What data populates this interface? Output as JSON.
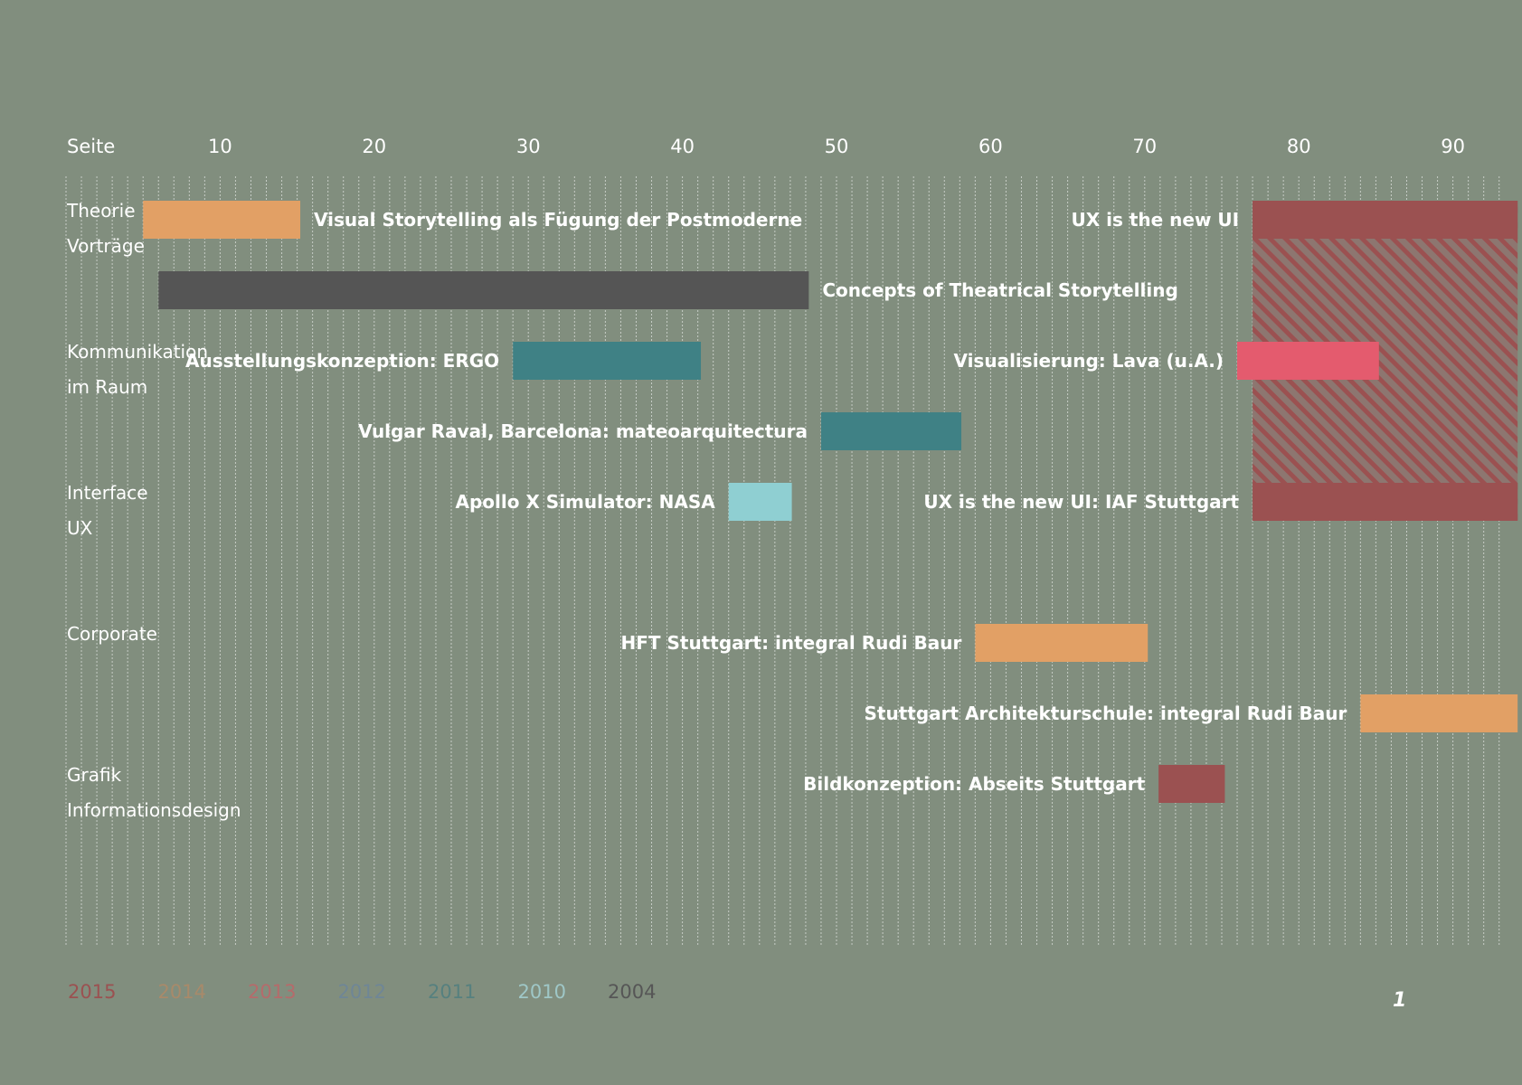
{
  "page_number": "1",
  "chart_data": {
    "type": "timeline",
    "axis_label": "Seite",
    "xlim": [
      0,
      93
    ],
    "ticks": [
      10,
      20,
      30,
      40,
      50,
      60,
      70,
      80,
      90
    ],
    "tick_labels": [
      "10",
      "20",
      "30",
      "40",
      "50",
      "60",
      "70",
      "80",
      "90"
    ],
    "gridlines": true,
    "colors": {
      "2015": "#9b5151",
      "2014": "#e2a065",
      "2013": "#e45b6e",
      "2012": "#5c7c93",
      "2011": "#3f8185",
      "2010": "#8fcfd2",
      "2004": "#555555"
    },
    "legend": [
      {
        "year": "2015",
        "color": "#9b5151"
      },
      {
        "year": "2014",
        "color": "#a88a6a"
      },
      {
        "year": "2013",
        "color": "#b56b6b"
      },
      {
        "year": "2012",
        "color": "#6f8696"
      },
      {
        "year": "2011",
        "color": "#56807f"
      },
      {
        "year": "2010",
        "color": "#9fc7c7"
      },
      {
        "year": "2004",
        "color": "#565656"
      }
    ],
    "categories": [
      {
        "lines": [
          "Theorie",
          "Vorträge"
        ],
        "row": 0
      },
      {
        "lines": [
          "Kommunikation",
          "im Raum"
        ],
        "row": 2
      },
      {
        "lines": [
          "Interface",
          "UX"
        ],
        "row": 4
      },
      {
        "lines": [
          "Corporate"
        ],
        "row": 6
      },
      {
        "lines": [
          "Grafik",
          "Informationsdesign"
        ],
        "row": 8
      }
    ],
    "bars": [
      {
        "label": "Visual Storytelling als Fügung der Postmoderne",
        "start": 5,
        "end": 15.2,
        "row": 0,
        "year": "2014",
        "label_side": "right"
      },
      {
        "label": "UX is the new UI",
        "start": 77,
        "end": 94.2,
        "row": 0,
        "year": "2015",
        "label_side": "left"
      },
      {
        "label": "Concepts of Theatrical Storytelling",
        "start": 6,
        "end": 48.2,
        "row": 1,
        "year": "2004",
        "label_side": "right"
      },
      {
        "label": "Ausstellungskonzeption: ERGO",
        "start": 29,
        "end": 41.2,
        "row": 2,
        "year": "2011",
        "label_side": "left"
      },
      {
        "label": "Visualisierung: Lava (u.A.)",
        "start": 76,
        "end": 85.2,
        "row": 2,
        "year": "2013",
        "label_side": "left"
      },
      {
        "label": "Vulgar Raval, Barcelona: mateoarquitectura",
        "start": 49,
        "end": 58.1,
        "row": 3,
        "year": "2011",
        "label_side": "left"
      },
      {
        "label": "Apollo X Simulator: NASA",
        "start": 43,
        "end": 47.1,
        "row": 4,
        "year": "2010",
        "label_side": "left"
      },
      {
        "label": "UX is the new UI: IAF Stuttgart",
        "start": 77,
        "end": 94.2,
        "row": 4,
        "year": "2015",
        "label_side": "left"
      },
      {
        "label": "HFT Stuttgart: integral Rudi Baur",
        "start": 59,
        "end": 70.2,
        "row": 6,
        "year": "2014",
        "label_side": "left"
      },
      {
        "label": "Stuttgart Architekturschule: integral Rudi Baur",
        "start": 84,
        "end": 94.2,
        "row": 7,
        "year": "2014",
        "label_side": "left"
      },
      {
        "label": "Bildkonzeption: Abseits Stuttgart",
        "start": 70.9,
        "end": 75.2,
        "row": 8,
        "year": "2015",
        "label_side": "left"
      }
    ],
    "span_highlight": {
      "start": 77,
      "end": 94.2,
      "row_from": 0,
      "row_to": 4,
      "year": "2015",
      "pattern": "hatched"
    }
  }
}
